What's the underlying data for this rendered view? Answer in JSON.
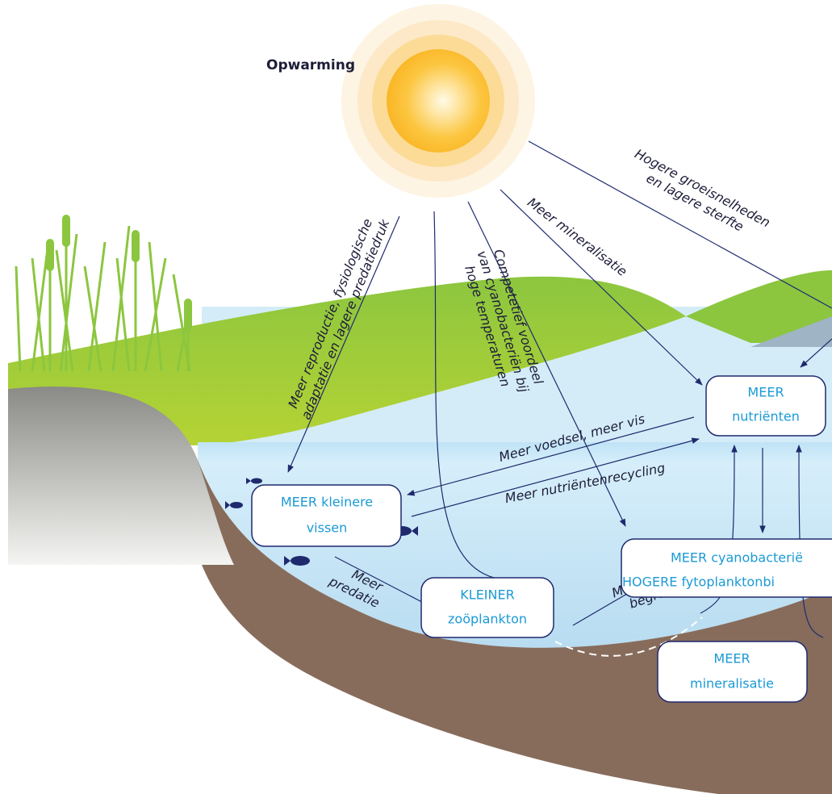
{
  "title": "Opwarming",
  "labels": [
    {
      "lines": [
        "Hogere groeisnelheden",
        "en lagere sterfte"
      ]
    },
    {
      "lines": [
        "Meer mineralisatie"
      ]
    },
    {
      "lines": [
        "Competetief voordeel",
        "van cyanobacteriën bij",
        "hoge temperaturen"
      ]
    },
    {
      "lines": [
        "Meer reproductie, fysiologische",
        "adaptatie en lagere predatiedruk"
      ]
    },
    {
      "lines": [
        "Meer voedsel, meer vis"
      ]
    },
    {
      "lines": [
        "Meer nutriëntenrecycling"
      ]
    },
    {
      "lines": [
        "Meer",
        "predatie"
      ]
    },
    {
      "lines": [
        "Minder",
        "begrazing"
      ]
    }
  ],
  "boxes": [
    {
      "lines": [
        "MEER",
        "nutriënten"
      ]
    },
    {
      "lines": [
        "MEER kleinere",
        "vissen"
      ]
    },
    {
      "lines": [
        "MEER cyanobacterië",
        "HOGERE fytoplanktonbi"
      ]
    },
    {
      "lines": [
        "KLEINER",
        "zoöplankton"
      ]
    },
    {
      "lines": [
        "MEER",
        "mineralisatie"
      ]
    }
  ]
}
